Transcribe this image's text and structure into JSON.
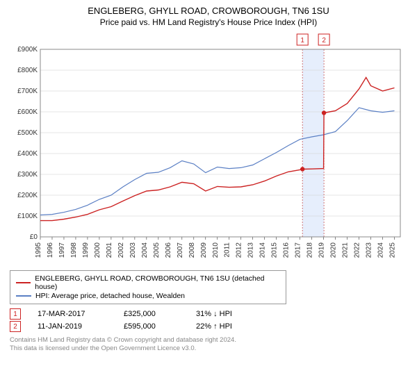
{
  "title_line1": "ENGLEBERG, GHYLL ROAD, CROWBOROUGH, TN6 1SU",
  "title_line2": "Price paid vs. HM Land Registry's House Price Index (HPI)",
  "chart": {
    "type": "line",
    "background_color": "#ffffff",
    "plot_border_color": "#888888",
    "grid_color": "#cccccc",
    "highlight_band_color": "#e6eefc",
    "highlight_marker_line_color": "#cc6666",
    "highlight_marker_dash": "2,2",
    "xlim": [
      1995,
      2025.5
    ],
    "ylim": [
      0,
      900000
    ],
    "ytick_step": 100000,
    "ytick_prefix": "£",
    "ytick_suffix": "K",
    "ytick_zero_label": "£0",
    "xticks": [
      1995,
      1996,
      1997,
      1998,
      1999,
      2000,
      2001,
      2002,
      2003,
      2004,
      2005,
      2006,
      2007,
      2008,
      2009,
      2010,
      2011,
      2012,
      2013,
      2014,
      2015,
      2016,
      2017,
      2018,
      2019,
      2020,
      2021,
      2022,
      2023,
      2024,
      2025
    ],
    "series": [
      {
        "name": "property",
        "color": "#cc2222",
        "width": 1.4,
        "label": "ENGLEBERG, GHYLL ROAD, CROWBOROUGH, TN6 1SU (detached house)",
        "points": [
          [
            1995,
            78000
          ],
          [
            1996,
            78000
          ],
          [
            1997,
            85000
          ],
          [
            1998,
            95000
          ],
          [
            1999,
            108000
          ],
          [
            2000,
            130000
          ],
          [
            2001,
            145000
          ],
          [
            2002,
            172000
          ],
          [
            2003,
            198000
          ],
          [
            2004,
            220000
          ],
          [
            2005,
            225000
          ],
          [
            2006,
            240000
          ],
          [
            2007,
            262000
          ],
          [
            2008,
            255000
          ],
          [
            2009,
            220000
          ],
          [
            2010,
            242000
          ],
          [
            2011,
            238000
          ],
          [
            2012,
            240000
          ],
          [
            2013,
            250000
          ],
          [
            2014,
            268000
          ],
          [
            2015,
            292000
          ],
          [
            2016,
            312000
          ],
          [
            2017,
            322000
          ],
          [
            2017.21,
            325000
          ],
          [
            2018,
            326000
          ],
          [
            2019,
            328000
          ],
          [
            2019.03,
            595000
          ],
          [
            2019.5,
            600000
          ],
          [
            2020,
            605000
          ],
          [
            2021,
            640000
          ],
          [
            2022,
            710000
          ],
          [
            2022.6,
            765000
          ],
          [
            2023,
            725000
          ],
          [
            2024,
            700000
          ],
          [
            2025,
            715000
          ]
        ]
      },
      {
        "name": "hpi",
        "color": "#5a7fc4",
        "width": 1.2,
        "label": "HPI: Average price, detached house, Wealden",
        "points": [
          [
            1995,
            105000
          ],
          [
            1996,
            108000
          ],
          [
            1997,
            118000
          ],
          [
            1998,
            132000
          ],
          [
            1999,
            152000
          ],
          [
            2000,
            180000
          ],
          [
            2001,
            200000
          ],
          [
            2002,
            240000
          ],
          [
            2003,
            275000
          ],
          [
            2004,
            305000
          ],
          [
            2005,
            310000
          ],
          [
            2006,
            332000
          ],
          [
            2007,
            365000
          ],
          [
            2008,
            350000
          ],
          [
            2009,
            308000
          ],
          [
            2010,
            335000
          ],
          [
            2011,
            328000
          ],
          [
            2012,
            332000
          ],
          [
            2013,
            345000
          ],
          [
            2014,
            375000
          ],
          [
            2015,
            405000
          ],
          [
            2016,
            438000
          ],
          [
            2017,
            468000
          ],
          [
            2018,
            480000
          ],
          [
            2019,
            490000
          ],
          [
            2020,
            505000
          ],
          [
            2021,
            558000
          ],
          [
            2022,
            620000
          ],
          [
            2023,
            605000
          ],
          [
            2024,
            598000
          ],
          [
            2025,
            605000
          ]
        ]
      }
    ],
    "markers": [
      {
        "idx": "1",
        "x": 2017.21,
        "y": 325000
      },
      {
        "idx": "2",
        "x": 2019.03,
        "y": 595000
      }
    ]
  },
  "legend": {
    "items": [
      {
        "color": "#cc2222",
        "label": "ENGLEBERG, GHYLL ROAD, CROWBOROUGH, TN6 1SU (detached house)"
      },
      {
        "color": "#5a7fc4",
        "label": "HPI: Average price, detached house, Wealden"
      }
    ]
  },
  "sales": [
    {
      "idx": "1",
      "date": "17-MAR-2017",
      "price": "£325,000",
      "cmp": "31% ↓ HPI"
    },
    {
      "idx": "2",
      "date": "11-JAN-2019",
      "price": "£595,000",
      "cmp": "22% ↑ HPI"
    }
  ],
  "footer_line1": "Contains HM Land Registry data © Crown copyright and database right 2024.",
  "footer_line2": "This data is licensed under the Open Government Licence v3.0."
}
